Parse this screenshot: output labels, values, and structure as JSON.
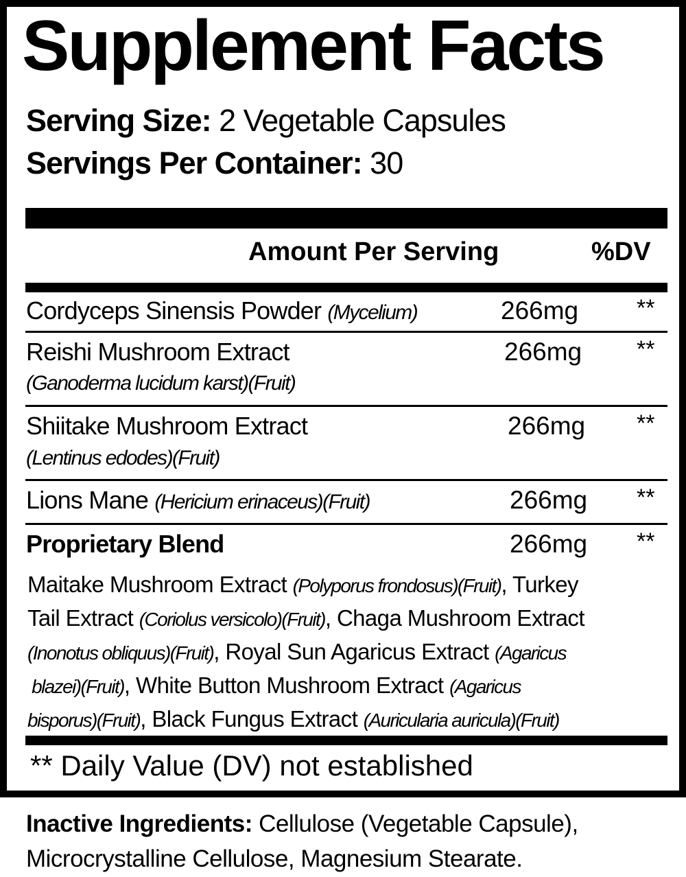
{
  "title": "Supplement Facts",
  "serving_size": {
    "label": "Serving Size:",
    "value": "2 Vegetable Capsules"
  },
  "servings_per_container": {
    "label": "Servings Per Container:",
    "value": "30"
  },
  "header": {
    "amount": "Amount Per Serving",
    "dv": "%DV"
  },
  "rows": [
    {
      "name": "Cordyceps Sinensis Powder",
      "latin": "(Mycelium)",
      "amount": "266mg",
      "dv": "**"
    },
    {
      "name": "Reishi Mushroom Extract",
      "latin": "(Ganoderma lucidum karst)(Fruit)",
      "amount": "266mg",
      "dv": "**"
    },
    {
      "name": "Shiitake Mushroom Extract",
      "latin": "(Lentinus edodes)(Fruit)",
      "amount": "266mg",
      "dv": "**"
    },
    {
      "name": "Lions Mane",
      "latin": "(Hericium erinaceus)(Fruit)",
      "amount": "266mg",
      "dv": "**"
    },
    {
      "name": "Proprietary Blend",
      "amount": "266mg",
      "dv": "**"
    }
  ],
  "blend_lines": [
    [
      {
        "t": "Maitake Mushroom Extract "
      },
      {
        "t": "(Polyporus frondosus)(Fruit)",
        "i": true
      },
      {
        "t": ", Turkey"
      }
    ],
    [
      {
        "t": "Tail Extract "
      },
      {
        "t": "(Coriolus versicolo)(Fruit)",
        "i": true
      },
      {
        "t": ", Chaga Mushroom Extract"
      }
    ],
    [
      {
        "t": "(Inonotus obliquus)(Fruit)",
        "i": true
      },
      {
        "t": ", Royal Sun Agaricus Extract "
      },
      {
        "t": "(Agaricus",
        "i": true
      }
    ],
    [
      {
        "t": " blazei)(Fruit)",
        "i": true
      },
      {
        "t": ", White Button Mushroom Extract "
      },
      {
        "t": "(Agaricus",
        "i": true
      }
    ],
    [
      {
        "t": "bisporus)(Fruit)",
        "i": true
      },
      {
        "t": ", Black Fungus Extract "
      },
      {
        "t": "(Auricularia auricula)(Fruit)",
        "i": true
      }
    ]
  ],
  "footnote": "** Daily Value (DV) not established",
  "inactive": {
    "label": "Inactive Ingredients:",
    "line1": "Cellulose (Vegetable Capsule),",
    "line2": "Microcrystalline Cellulose, Magnesium Stearate."
  }
}
